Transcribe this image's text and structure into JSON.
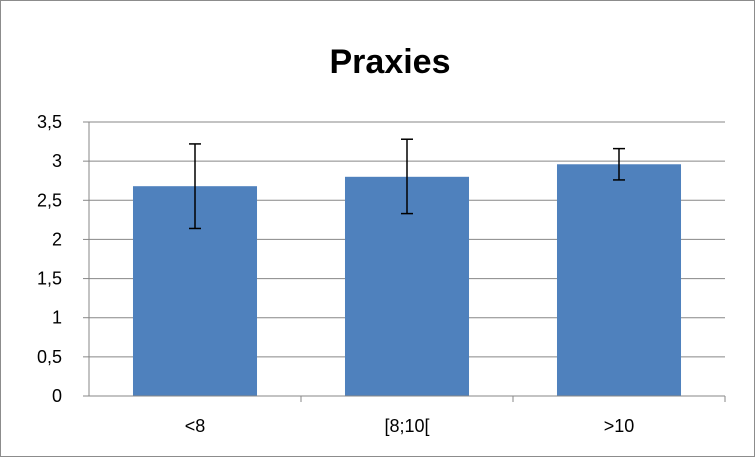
{
  "chart_data": {
    "type": "bar",
    "title": "Praxies",
    "categories": [
      "<8",
      "[8;10[",
      ">10"
    ],
    "values": [
      2.68,
      2.8,
      2.96
    ],
    "error_low": [
      2.14,
      2.33,
      2.76
    ],
    "error_high": [
      3.22,
      3.28,
      3.16
    ],
    "ylim": [
      0,
      3.5
    ],
    "yticks": [
      0,
      0.5,
      1,
      1.5,
      2,
      2.5,
      3,
      3.5
    ],
    "ytick_labels": [
      "0",
      "0,5",
      "1",
      "1,5",
      "2",
      "2,5",
      "3",
      "3,5"
    ],
    "xlabel": "",
    "ylabel": "",
    "grid": true,
    "legend": "none",
    "bar_color": "#4f81bd",
    "error_bar_color": "#000000",
    "gridline_color": "#878787"
  }
}
